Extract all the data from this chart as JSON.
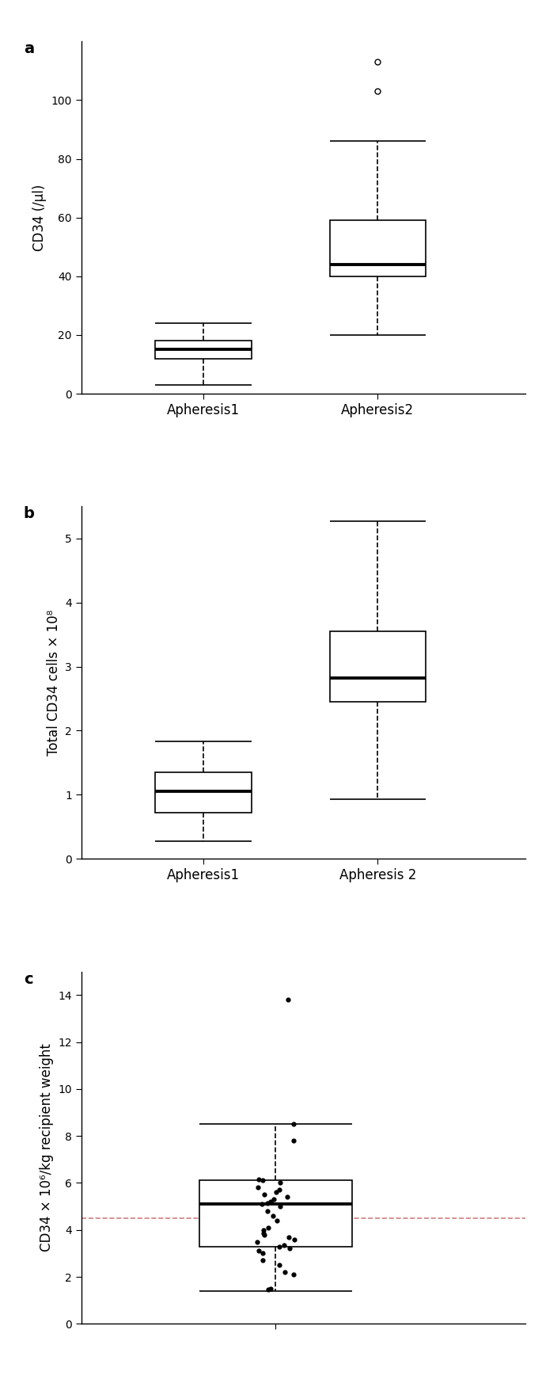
{
  "panel_a": {
    "label": "a",
    "ylabel": "CD34 (/μl)",
    "xtick_labels": [
      "Apheresis1",
      "Apheresis2"
    ],
    "ylim": [
      0,
      120
    ],
    "yticks": [
      0,
      20,
      40,
      60,
      80,
      100
    ],
    "box1": {
      "whislo": 3,
      "q1": 12,
      "med": 15,
      "q3": 18,
      "whishi": 24
    },
    "box2": {
      "whislo": 20,
      "q1": 40,
      "med": 44,
      "q3": 59,
      "whishi": 86
    },
    "outliers2": [
      103,
      113
    ]
  },
  "panel_b": {
    "label": "b",
    "ylabel": "Total CD34 cells × 10⁸",
    "xtick_labels": [
      "Apheresis1",
      "Apheresis 2"
    ],
    "ylim": [
      0,
      5.5
    ],
    "yticks": [
      0,
      1,
      2,
      3,
      4,
      5
    ],
    "box1": {
      "whislo": 0.28,
      "q1": 0.72,
      "med": 1.05,
      "q3": 1.35,
      "whishi": 1.83
    },
    "box2": {
      "whislo": 0.93,
      "q1": 2.45,
      "med": 2.82,
      "q3": 3.55,
      "whishi": 5.27
    }
  },
  "panel_c": {
    "label": "c",
    "ylabel": "CD34 × 10⁶/kg recipient weight",
    "ylim": [
      0,
      15
    ],
    "yticks": [
      0,
      2,
      4,
      6,
      8,
      10,
      12,
      14
    ],
    "box1": {
      "whislo": 1.4,
      "q1": 3.3,
      "med": 5.1,
      "q3": 6.1,
      "whishi": 8.5
    },
    "hline": 4.5,
    "jitter_points": [
      1.5,
      2.1,
      2.2,
      2.5,
      2.7,
      3.0,
      3.1,
      3.2,
      3.3,
      3.35,
      3.5,
      3.6,
      3.7,
      3.8,
      3.85,
      4.0,
      4.1,
      4.4,
      4.6,
      4.8,
      5.0,
      5.1,
      5.15,
      5.2,
      5.3,
      5.4,
      5.5,
      5.6,
      5.7,
      5.8,
      6.0,
      6.1,
      6.15,
      7.8,
      8.5,
      13.8,
      1.45
    ]
  }
}
